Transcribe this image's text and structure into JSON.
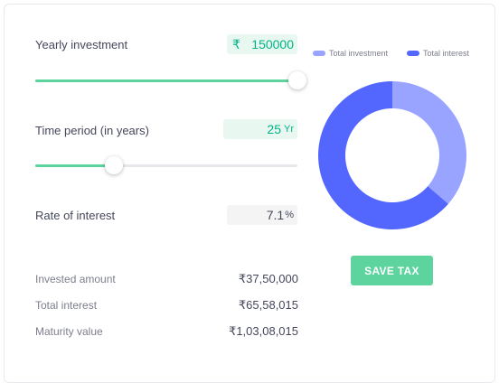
{
  "yearly_investment": {
    "label": "Yearly investment",
    "currency_symbol": "₹",
    "value": "150000",
    "slider_fraction": 1.0
  },
  "time_period": {
    "label": "Time period (in years)",
    "value": "25",
    "unit": "Yr",
    "slider_fraction": 0.3
  },
  "rate_of_interest": {
    "label": "Rate of interest",
    "value": "7.1",
    "unit": "%"
  },
  "summary": {
    "invested_amount": {
      "label": "Invested amount",
      "value": "₹37,50,000"
    },
    "total_interest": {
      "label": "Total interest",
      "value": "₹65,58,015"
    },
    "maturity_value": {
      "label": "Maturity value",
      "value": "₹1,03,08,015"
    }
  },
  "chart_data": {
    "type": "pie",
    "categories": [
      "Total investment",
      "Total interest"
    ],
    "values": [
      3750000,
      6558015
    ],
    "colors": [
      "#98a4ff",
      "#5367ff"
    ],
    "legend_position": "top"
  },
  "save_button": {
    "label": "SAVE TAX"
  }
}
